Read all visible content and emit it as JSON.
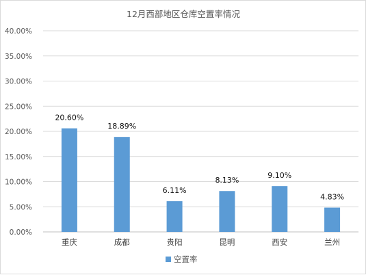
{
  "chart_data": {
    "type": "bar",
    "title": "12月西部地区仓库空置率情况",
    "categories": [
      "重庆",
      "成都",
      "贵阳",
      "昆明",
      "西安",
      "兰州"
    ],
    "series": [
      {
        "name": "空置率",
        "values": [
          20.6,
          18.89,
          6.11,
          8.13,
          9.1,
          4.83
        ],
        "labels": [
          "20.60%",
          "18.89%",
          "6.11%",
          "8.13%",
          "9.10%",
          "4.83%"
        ],
        "color": "#5b9bd5"
      }
    ],
    "ylim": [
      0,
      40
    ],
    "yticks": [
      "0.00%",
      "5.00%",
      "10.00%",
      "15.00%",
      "20.00%",
      "25.00%",
      "30.00%",
      "35.00%",
      "40.00%"
    ],
    "grid": true,
    "legend": "bottom"
  }
}
